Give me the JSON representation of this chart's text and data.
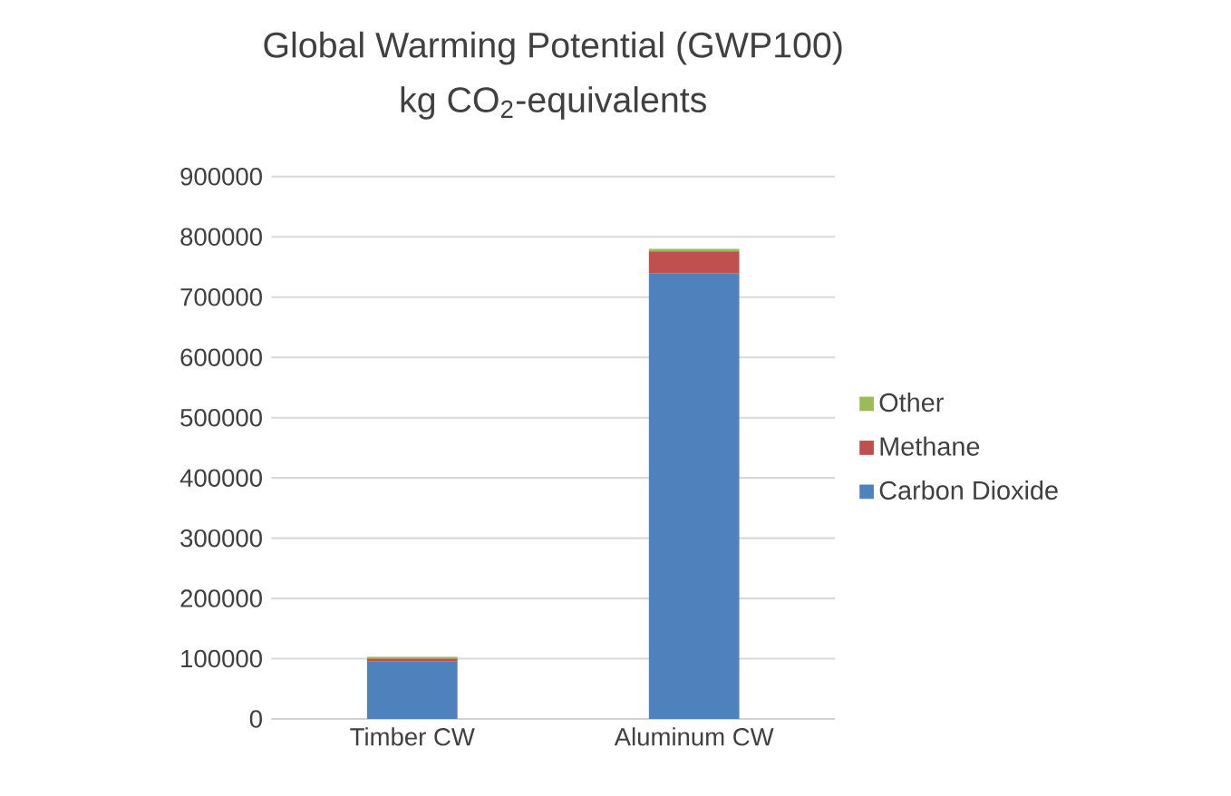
{
  "chart_data": {
    "type": "bar",
    "title": "Global Warming Potential (GWP100)",
    "subtitle": "kg CO$_{2}$-equivalents",
    "categories": [
      "Timber CW",
      "Aluminum CW"
    ],
    "stacked": true,
    "series": [
      {
        "name": "Carbon Dioxide",
        "color": "#4f81bd",
        "values": [
          95000,
          740000
        ]
      },
      {
        "name": "Methane",
        "color": "#c0504d",
        "values": [
          5000,
          36000
        ]
      },
      {
        "name": "Other",
        "color": "#9bbb59",
        "values": [
          3000,
          4000
        ]
      }
    ],
    "ylim": [
      0,
      900000
    ],
    "yticks": [
      0,
      100000,
      200000,
      300000,
      400000,
      500000,
      600000,
      700000,
      800000,
      900000
    ],
    "grid": "y",
    "legend": "right"
  }
}
